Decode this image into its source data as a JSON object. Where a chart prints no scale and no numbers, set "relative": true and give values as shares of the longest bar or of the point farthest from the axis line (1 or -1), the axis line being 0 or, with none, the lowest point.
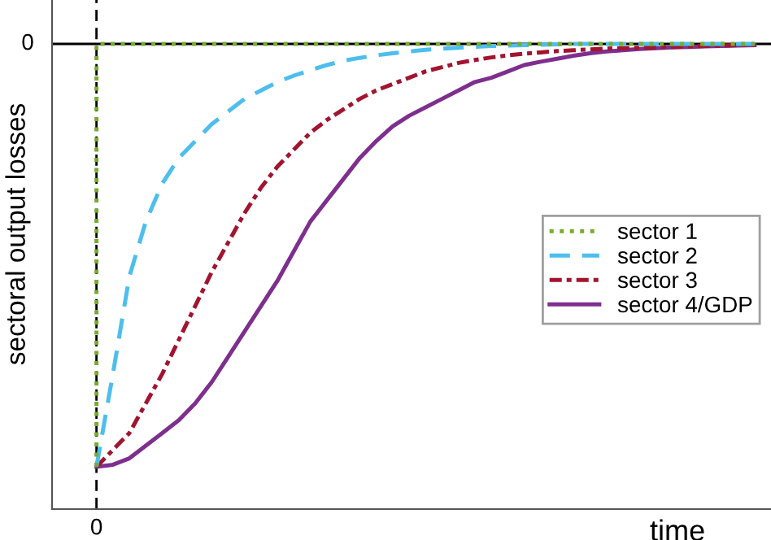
{
  "chart_data": {
    "type": "line",
    "relative": true,
    "xlabel": "time",
    "ylabel": "sectoral output losses",
    "categories": [
      null,
      null,
      null,
      null,
      null,
      null,
      null,
      null,
      null,
      null,
      null,
      null,
      null,
      null,
      null,
      null,
      null,
      null,
      null,
      null,
      null,
      null,
      null,
      null,
      null,
      null,
      null,
      null,
      null,
      null,
      null,
      null,
      null,
      null,
      null,
      null,
      null,
      null,
      null,
      null,
      null
    ],
    "annotations": [
      "0"
    ],
    "series": [
      {
        "name": "sector 1",
        "color": "#77ac30",
        "line_style": "dotted",
        "type": "step",
        "values": [
          -1,
          0,
          0,
          0,
          0,
          0,
          0,
          0,
          0,
          0,
          0,
          0,
          0,
          0,
          0,
          0,
          0,
          0,
          0,
          0,
          0,
          0,
          0,
          0,
          0,
          0,
          0,
          0,
          0,
          0,
          0,
          0,
          0,
          0,
          0,
          0,
          0,
          0,
          0,
          0,
          0
        ]
      },
      {
        "name": "sector 2",
        "color": "#4dbeee",
        "line_style": "dashed",
        "values": [
          -1,
          -0.78,
          -0.55,
          -0.42,
          -0.33,
          -0.27,
          -0.23,
          -0.19,
          -0.16,
          -0.13,
          -0.11,
          -0.09,
          -0.075,
          -0.062,
          -0.05,
          -0.04,
          -0.033,
          -0.027,
          -0.022,
          -0.018,
          -0.014,
          -0.011,
          -0.009,
          -0.007,
          -0.005,
          -0.004,
          -0.003,
          -0.002,
          -0.001,
          0,
          0,
          0,
          0,
          0,
          0,
          0,
          0,
          0,
          0,
          0,
          0
        ]
      },
      {
        "name": "sector 3",
        "color": "#a2142f",
        "line_style": "dashdot",
        "values": [
          -1,
          -0.96,
          -0.92,
          -0.85,
          -0.78,
          -0.7,
          -0.62,
          -0.54,
          -0.47,
          -0.4,
          -0.34,
          -0.29,
          -0.25,
          -0.21,
          -0.18,
          -0.155,
          -0.13,
          -0.11,
          -0.095,
          -0.08,
          -0.065,
          -0.055,
          -0.045,
          -0.038,
          -0.032,
          -0.027,
          -0.023,
          -0.02,
          -0.017,
          -0.015,
          -0.013,
          -0.011,
          -0.01,
          -0.009,
          -0.008,
          -0.007,
          -0.006,
          -0.005,
          -0.004,
          -0.003,
          -0.003
        ]
      },
      {
        "name": "sector 4/GDP",
        "color": "#7e2f8e",
        "line_style": "solid",
        "values": [
          -1,
          -0.995,
          -0.98,
          -0.95,
          -0.92,
          -0.89,
          -0.85,
          -0.8,
          -0.74,
          -0.68,
          -0.62,
          -0.56,
          -0.49,
          -0.42,
          -0.37,
          -0.32,
          -0.27,
          -0.23,
          -0.195,
          -0.17,
          -0.15,
          -0.13,
          -0.11,
          -0.09,
          -0.08,
          -0.065,
          -0.05,
          -0.042,
          -0.035,
          -0.028,
          -0.022,
          -0.018,
          -0.015,
          -0.012,
          -0.01,
          -0.008,
          -0.007,
          -0.006,
          -0.005,
          -0.004,
          -0.003
        ]
      }
    ],
    "ref_lines": [
      {
        "axis": "y",
        "value": 0,
        "label": "0",
        "color": "#000000",
        "line_style": "solid"
      }
    ],
    "legend": "right",
    "marker": "none"
  }
}
